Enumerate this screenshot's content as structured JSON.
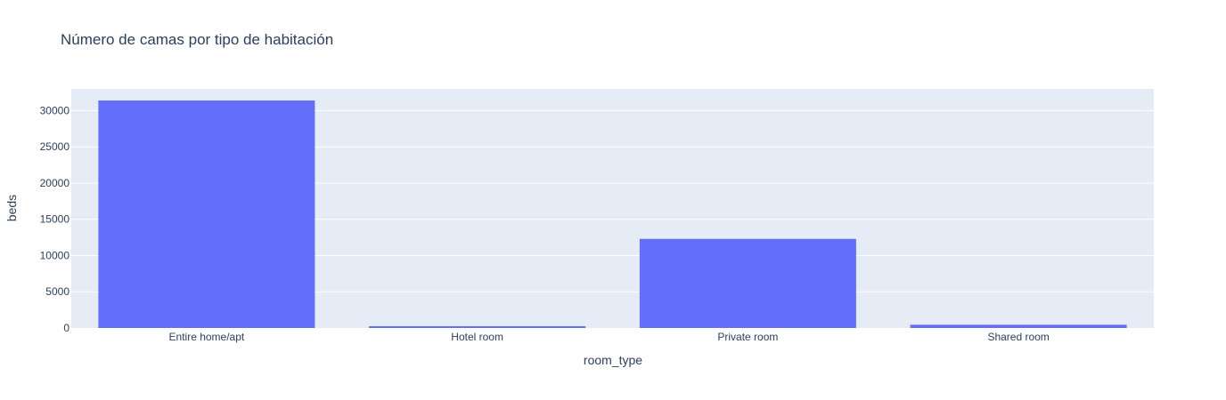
{
  "chart_data": {
    "type": "bar",
    "title": "Número de camas por tipo de habitación",
    "xlabel": "room_type",
    "ylabel": "beds",
    "categories": [
      "Entire home/apt",
      "Hotel room",
      "Private room",
      "Shared room"
    ],
    "values": [
      31400,
      250,
      12300,
      450
    ],
    "ylim": [
      0,
      33000
    ],
    "yticks": [
      0,
      5000,
      10000,
      15000,
      20000,
      25000,
      30000
    ],
    "grid": true,
    "colors": {
      "bar": "#636efa",
      "plot_bg": "#e5ecf6",
      "grid": "#ffffff",
      "text": "#2a3f5f"
    }
  }
}
